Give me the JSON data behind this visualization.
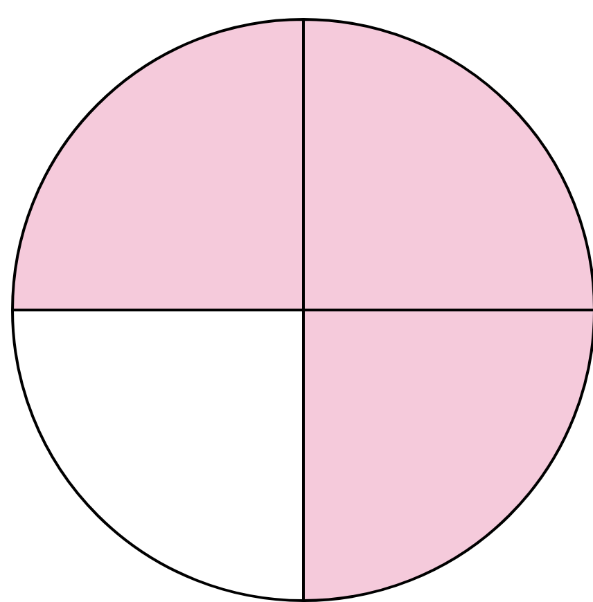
{
  "chart_data": {
    "type": "pie",
    "categories": [
      null,
      null,
      null,
      null
    ],
    "values": [
      25,
      25,
      25,
      25
    ],
    "colors": [
      "#f5cadb",
      "#f5cadb",
      "#ffffff",
      "#f5cadb"
    ]
  }
}
